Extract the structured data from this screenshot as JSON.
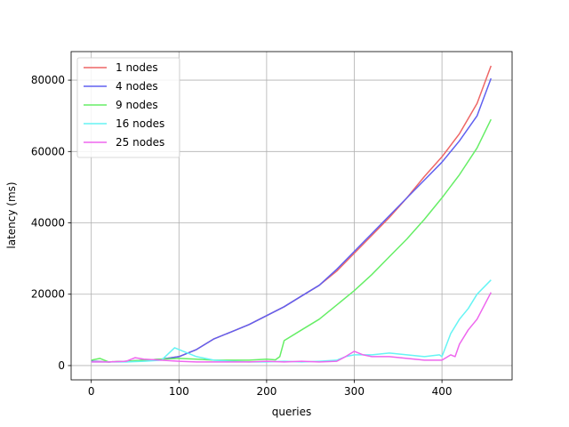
{
  "chart_data": {
    "type": "line",
    "title": "",
    "xlabel": "queries",
    "ylabel": "latency (ms)",
    "xlim": [
      -23,
      480
    ],
    "ylim": [
      -4000,
      88000
    ],
    "xticks": [
      0,
      100,
      200,
      300,
      400
    ],
    "yticks": [
      0,
      20000,
      40000,
      60000,
      80000
    ],
    "grid": true,
    "legend_position": "top-left",
    "series": [
      {
        "name": "1 nodes",
        "color": "#ee6666",
        "points": [
          [
            0,
            1200
          ],
          [
            20,
            1000
          ],
          [
            40,
            1200
          ],
          [
            60,
            1500
          ],
          [
            80,
            1800
          ],
          [
            100,
            2500
          ],
          [
            120,
            4500
          ],
          [
            140,
            7500
          ],
          [
            160,
            9500
          ],
          [
            180,
            11500
          ],
          [
            200,
            14000
          ],
          [
            220,
            16500
          ],
          [
            240,
            19500
          ],
          [
            260,
            22500
          ],
          [
            280,
            26500
          ],
          [
            300,
            31500
          ],
          [
            320,
            36500
          ],
          [
            340,
            41500
          ],
          [
            360,
            47000
          ],
          [
            380,
            53000
          ],
          [
            400,
            58500
          ],
          [
            420,
            65000
          ],
          [
            440,
            73500
          ],
          [
            456,
            84000
          ]
        ]
      },
      {
        "name": "4 nodes",
        "color": "#6060f0",
        "points": [
          [
            0,
            1200
          ],
          [
            20,
            1000
          ],
          [
            40,
            1200
          ],
          [
            60,
            1500
          ],
          [
            80,
            1800
          ],
          [
            100,
            2500
          ],
          [
            120,
            4500
          ],
          [
            140,
            7500
          ],
          [
            160,
            9500
          ],
          [
            180,
            11500
          ],
          [
            200,
            14000
          ],
          [
            220,
            16500
          ],
          [
            240,
            19500
          ],
          [
            260,
            22500
          ],
          [
            280,
            27000
          ],
          [
            300,
            32000
          ],
          [
            320,
            37000
          ],
          [
            340,
            42000
          ],
          [
            360,
            47000
          ],
          [
            380,
            52000
          ],
          [
            400,
            57000
          ],
          [
            420,
            63000
          ],
          [
            440,
            70000
          ],
          [
            456,
            80500
          ]
        ]
      },
      {
        "name": "9 nodes",
        "color": "#66ee66",
        "points": [
          [
            0,
            1500
          ],
          [
            10,
            2000
          ],
          [
            20,
            1000
          ],
          [
            40,
            1200
          ],
          [
            60,
            1500
          ],
          [
            80,
            1800
          ],
          [
            100,
            2000
          ],
          [
            120,
            1800
          ],
          [
            140,
            1500
          ],
          [
            160,
            1500
          ],
          [
            180,
            1500
          ],
          [
            200,
            1800
          ],
          [
            210,
            1600
          ],
          [
            215,
            2500
          ],
          [
            220,
            7000
          ],
          [
            240,
            10000
          ],
          [
            260,
            13000
          ],
          [
            280,
            17000
          ],
          [
            300,
            21000
          ],
          [
            320,
            25500
          ],
          [
            340,
            30500
          ],
          [
            360,
            35500
          ],
          [
            380,
            41000
          ],
          [
            400,
            47000
          ],
          [
            420,
            53500
          ],
          [
            440,
            61000
          ],
          [
            456,
            69000
          ]
        ]
      },
      {
        "name": "16 nodes",
        "color": "#66f4f4",
        "points": [
          [
            0,
            1000
          ],
          [
            20,
            1000
          ],
          [
            40,
            1000
          ],
          [
            60,
            1200
          ],
          [
            80,
            1500
          ],
          [
            95,
            5000
          ],
          [
            100,
            4500
          ],
          [
            110,
            3500
          ],
          [
            120,
            2500
          ],
          [
            140,
            1500
          ],
          [
            160,
            1200
          ],
          [
            180,
            1000
          ],
          [
            200,
            1000
          ],
          [
            220,
            1200
          ],
          [
            240,
            1000
          ],
          [
            260,
            1200
          ],
          [
            280,
            1500
          ],
          [
            290,
            2500
          ],
          [
            300,
            3000
          ],
          [
            320,
            3000
          ],
          [
            340,
            3500
          ],
          [
            360,
            3000
          ],
          [
            380,
            2500
          ],
          [
            397,
            3000
          ],
          [
            400,
            2500
          ],
          [
            410,
            9000
          ],
          [
            420,
            13000
          ],
          [
            430,
            16000
          ],
          [
            440,
            20000
          ],
          [
            456,
            24000
          ]
        ]
      },
      {
        "name": "25 nodes",
        "color": "#ee66ee",
        "points": [
          [
            0,
            1000
          ],
          [
            20,
            1000
          ],
          [
            40,
            1200
          ],
          [
            50,
            2200
          ],
          [
            60,
            1800
          ],
          [
            80,
            1500
          ],
          [
            100,
            1200
          ],
          [
            120,
            1000
          ],
          [
            140,
            1000
          ],
          [
            160,
            1000
          ],
          [
            180,
            1000
          ],
          [
            200,
            1200
          ],
          [
            220,
            1000
          ],
          [
            240,
            1200
          ],
          [
            260,
            1000
          ],
          [
            280,
            1200
          ],
          [
            290,
            2500
          ],
          [
            300,
            4000
          ],
          [
            310,
            3000
          ],
          [
            320,
            2500
          ],
          [
            340,
            2500
          ],
          [
            360,
            2000
          ],
          [
            380,
            1500
          ],
          [
            400,
            1500
          ],
          [
            410,
            3000
          ],
          [
            415,
            2500
          ],
          [
            420,
            6000
          ],
          [
            430,
            10000
          ],
          [
            440,
            13000
          ],
          [
            456,
            20500
          ]
        ]
      }
    ]
  }
}
